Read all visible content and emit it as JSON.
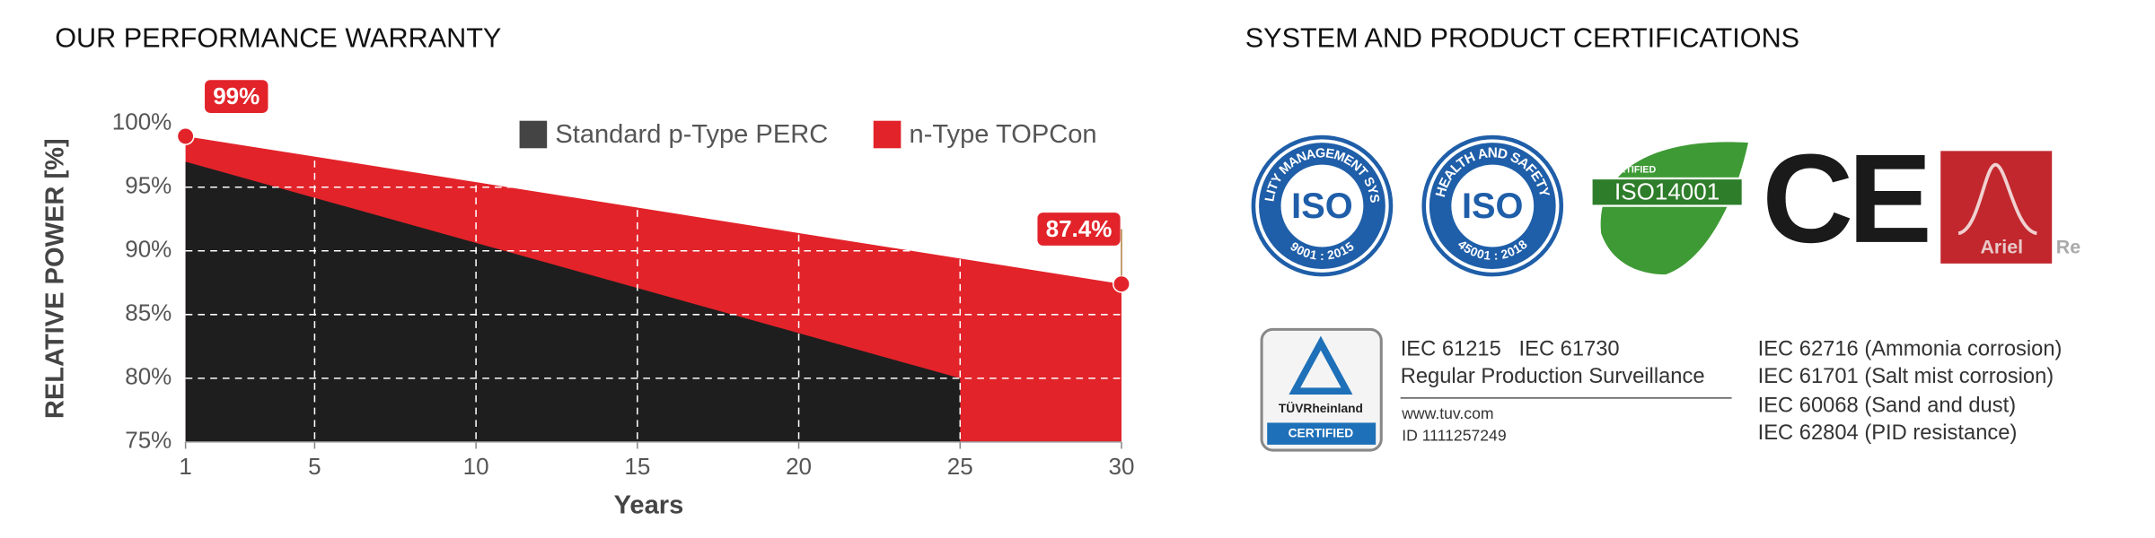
{
  "chart_data": {
    "type": "area",
    "title": "OUR PERFORMANCE WARRANTY",
    "x_label": "Years",
    "y_label": "RELATIVE POWER [%]",
    "xlim": [
      1,
      30
    ],
    "xticks": [
      1,
      5,
      10,
      15,
      20,
      25,
      30
    ],
    "ylim": [
      75,
      100
    ],
    "yticks": [
      {
        "value": 75,
        "label": "75%"
      },
      {
        "value": 80,
        "label": "80%"
      },
      {
        "value": 85,
        "label": "85%"
      },
      {
        "value": 90,
        "label": "90%"
      },
      {
        "value": 95,
        "label": "95%"
      },
      {
        "value": 100,
        "label": "100%"
      }
    ],
    "grid": true,
    "legend": "upper right",
    "series": [
      {
        "name": "Standard p-Type PERC",
        "color": "#1e1e1e",
        "legend_color": "#444444",
        "x": [
          1,
          25
        ],
        "values": [
          97,
          80
        ]
      },
      {
        "name": "n-Type TOPCon",
        "color": "#e2232a",
        "legend_color": "#e2232a",
        "x": [
          1,
          30
        ],
        "values": [
          99,
          87.4
        ],
        "value_labels": [
          "99%",
          "87.4%"
        ],
        "markers": true
      }
    ]
  },
  "certifications": {
    "title": "SYSTEM AND PRODUCT CERTIFICATIONS",
    "iso_9001": {
      "ring": "QUALITY MANAGEMENT SYSTEM",
      "mark": "ISO",
      "standard": "9001 : 2015"
    },
    "iso_45001": {
      "ring": "HEALTH AND SAFETY",
      "mark": "ISO",
      "standard": "45001 : 2018"
    },
    "iso_14001": {
      "badge": "CERTIFIED",
      "mark": "ISO14001"
    },
    "ce": "CE",
    "ariel_re": {
      "name": "Ariel",
      "suffix": "Re"
    },
    "tuv": {
      "brand": "TÜVRheinland",
      "badge": "CERTIFIED",
      "lines": [
        "IEC 61215   IEC 61730",
        "Regular Production Surveillance"
      ],
      "website": "www.tuv.com",
      "id": "ID 1111257249"
    },
    "tests": [
      "IEC 62716 (Ammonia corrosion)",
      "IEC 61701 (Salt mist corrosion)",
      "IEC 60068 (Sand and dust)",
      "IEC 62804 (PID resistance)"
    ]
  }
}
